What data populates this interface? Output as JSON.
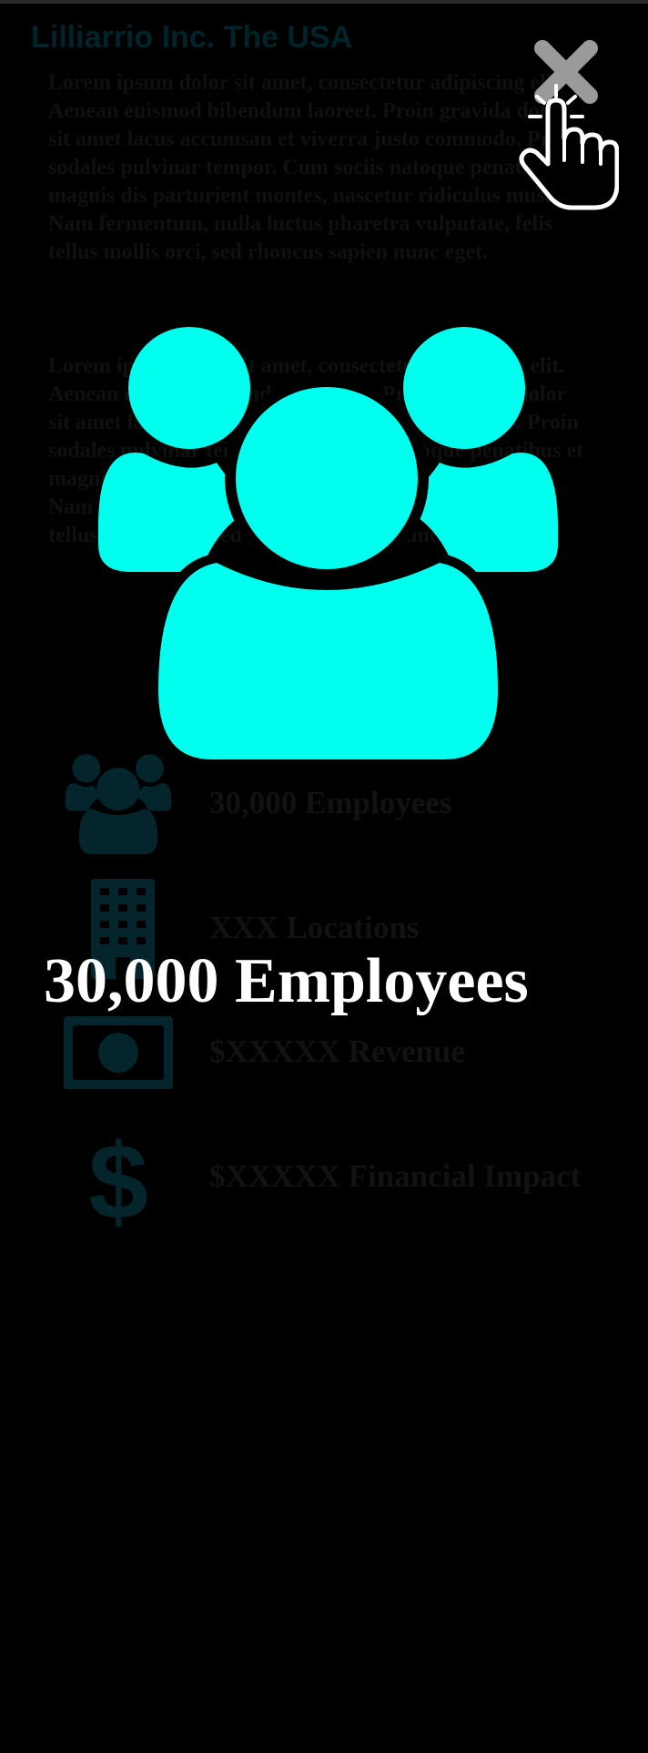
{
  "background": {
    "title": "Lilliarrio Inc. The USA",
    "paragraphs": [
      "Lorem ipsum dolor sit amet, consectetur adipiscing elit. Aenean euismod bibendum laoreet. Proin gravida dolor sit amet lacus accumsan et viverra justo commodo. Proin sodales pulvinar tempor. Cum sociis natoque penatibus et magnis dis parturient montes, nascetur ridiculus mus. Nam fermentum, nulla luctus pharetra vulputate, felis tellus mollis orci, sed rhoncus sapien nunc eget.",
      "Lorem ipsum dolor sit amet, consectetur adipiscing elit. Aenean euismod bibendum laoreet. Proin gravida dolor sit amet lacus accumsan et viverra justo commodo. Proin sodales pulvinar tempor. Cum sociis natoque penatibus et magnis dis parturient montes, nascetur ridiculus mus. Nam fermentum, nulla luctus pharetra vulputate, felis tellus mollis orci, sed rhoncus sapien nunc eget."
    ],
    "stats": [
      {
        "icon": "users-icon",
        "label": "30,000 Employees"
      },
      {
        "icon": "building-icon",
        "label": "XXX Locations"
      },
      {
        "icon": "money-bill-icon",
        "label": "$XXXXX Revenue"
      },
      {
        "icon": "dollar-sign-icon",
        "label": "$XXXXX Financial Impact"
      }
    ]
  },
  "modal": {
    "icon": "users-icon",
    "label": "30,000 Employees",
    "close_icon": "close-icon",
    "pointer_icon": "hand-pointer-icon"
  },
  "colors": {
    "accent": "#00ffee",
    "background": "#000000",
    "text": "#ffffff",
    "close": "#9a9a9a"
  }
}
